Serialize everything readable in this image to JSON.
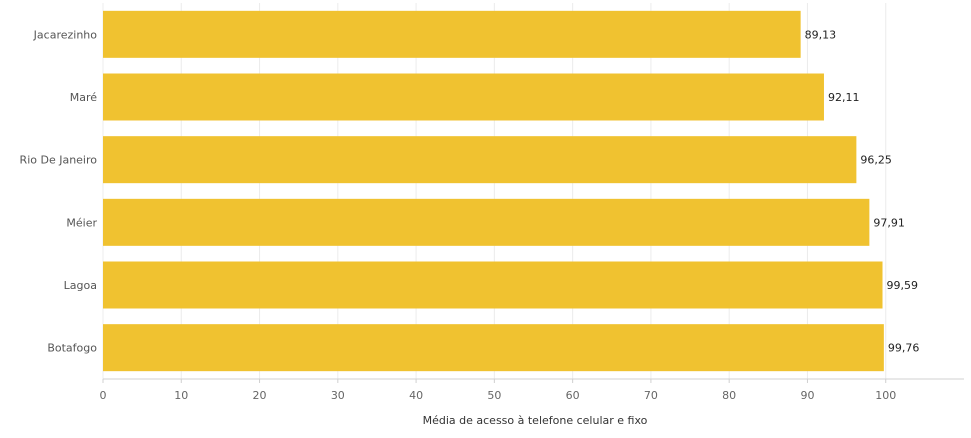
{
  "chart_data": {
    "type": "bar",
    "orientation": "horizontal",
    "categories": [
      "Jacarezinho",
      "Maré",
      "Rio De Janeiro",
      "Méier",
      "Lagoa",
      "Botafogo"
    ],
    "values": [
      89.13,
      92.11,
      96.25,
      97.91,
      99.59,
      99.76
    ],
    "value_labels": [
      "89,13",
      "92,11",
      "96,25",
      "97,91",
      "99,59",
      "99,76"
    ],
    "title": "",
    "xlabel": "Média de acesso à telefone celular e fixo",
    "ylabel": "",
    "xlim": [
      0,
      110
    ],
    "xticks": [
      0,
      10,
      20,
      30,
      40,
      50,
      60,
      70,
      80,
      90,
      100
    ],
    "grid": "vertical",
    "bar_color": "#F0C230"
  }
}
